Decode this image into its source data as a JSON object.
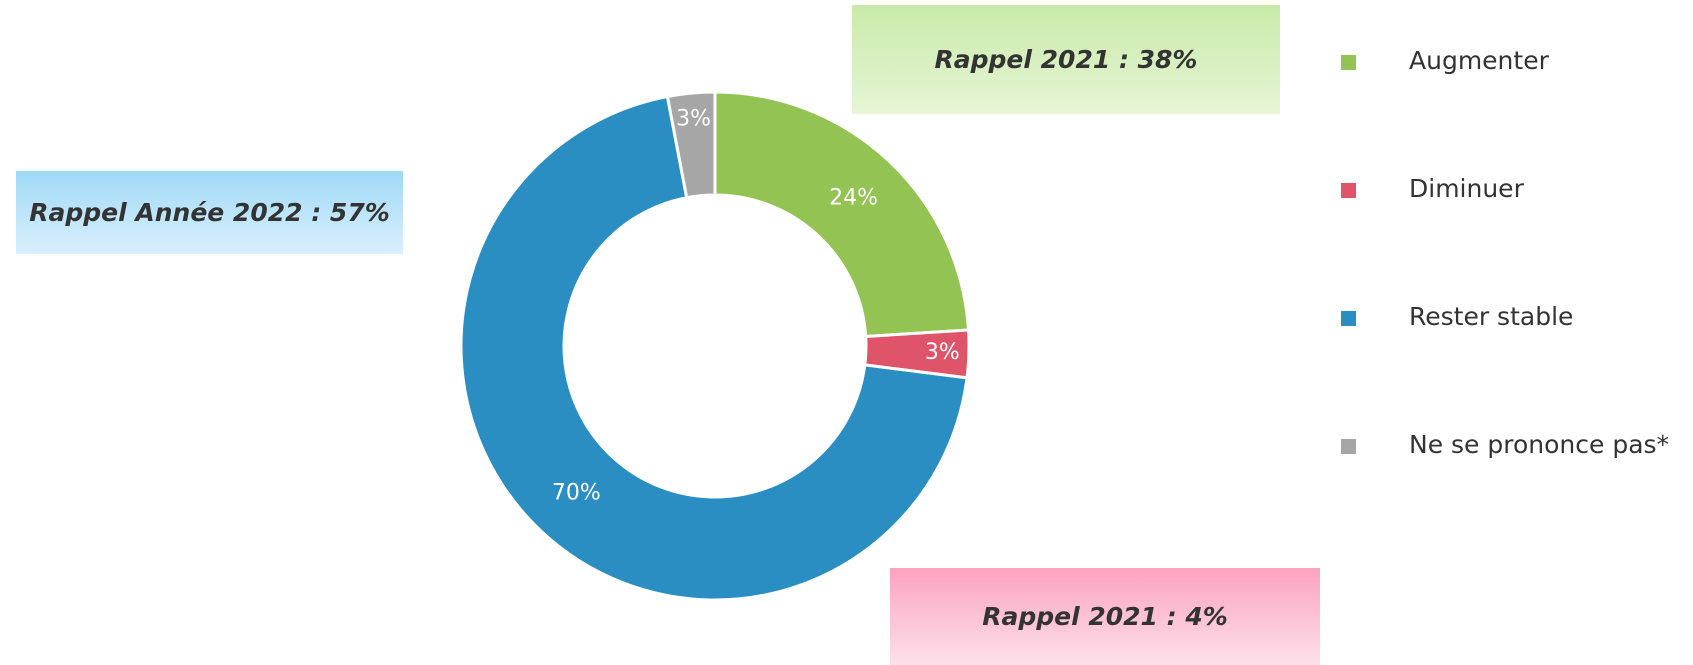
{
  "chart_data": {
    "type": "donut",
    "categories": [
      "Augmenter",
      "Diminuer",
      "Rester stable",
      "Ne se prononce pas*"
    ],
    "values": [
      24,
      3,
      70,
      3
    ],
    "value_labels": [
      "24%",
      "3%",
      "70%",
      "3%"
    ],
    "colors": [
      "#92c353",
      "#e05469",
      "#2a8ec2",
      "#a6a6a6"
    ],
    "legend": "right",
    "annotations": [
      "Rappel 2021 : 38%",
      "Rappel Année 2022 : 57%",
      "Rappel 2021 : 4%"
    ]
  }
}
